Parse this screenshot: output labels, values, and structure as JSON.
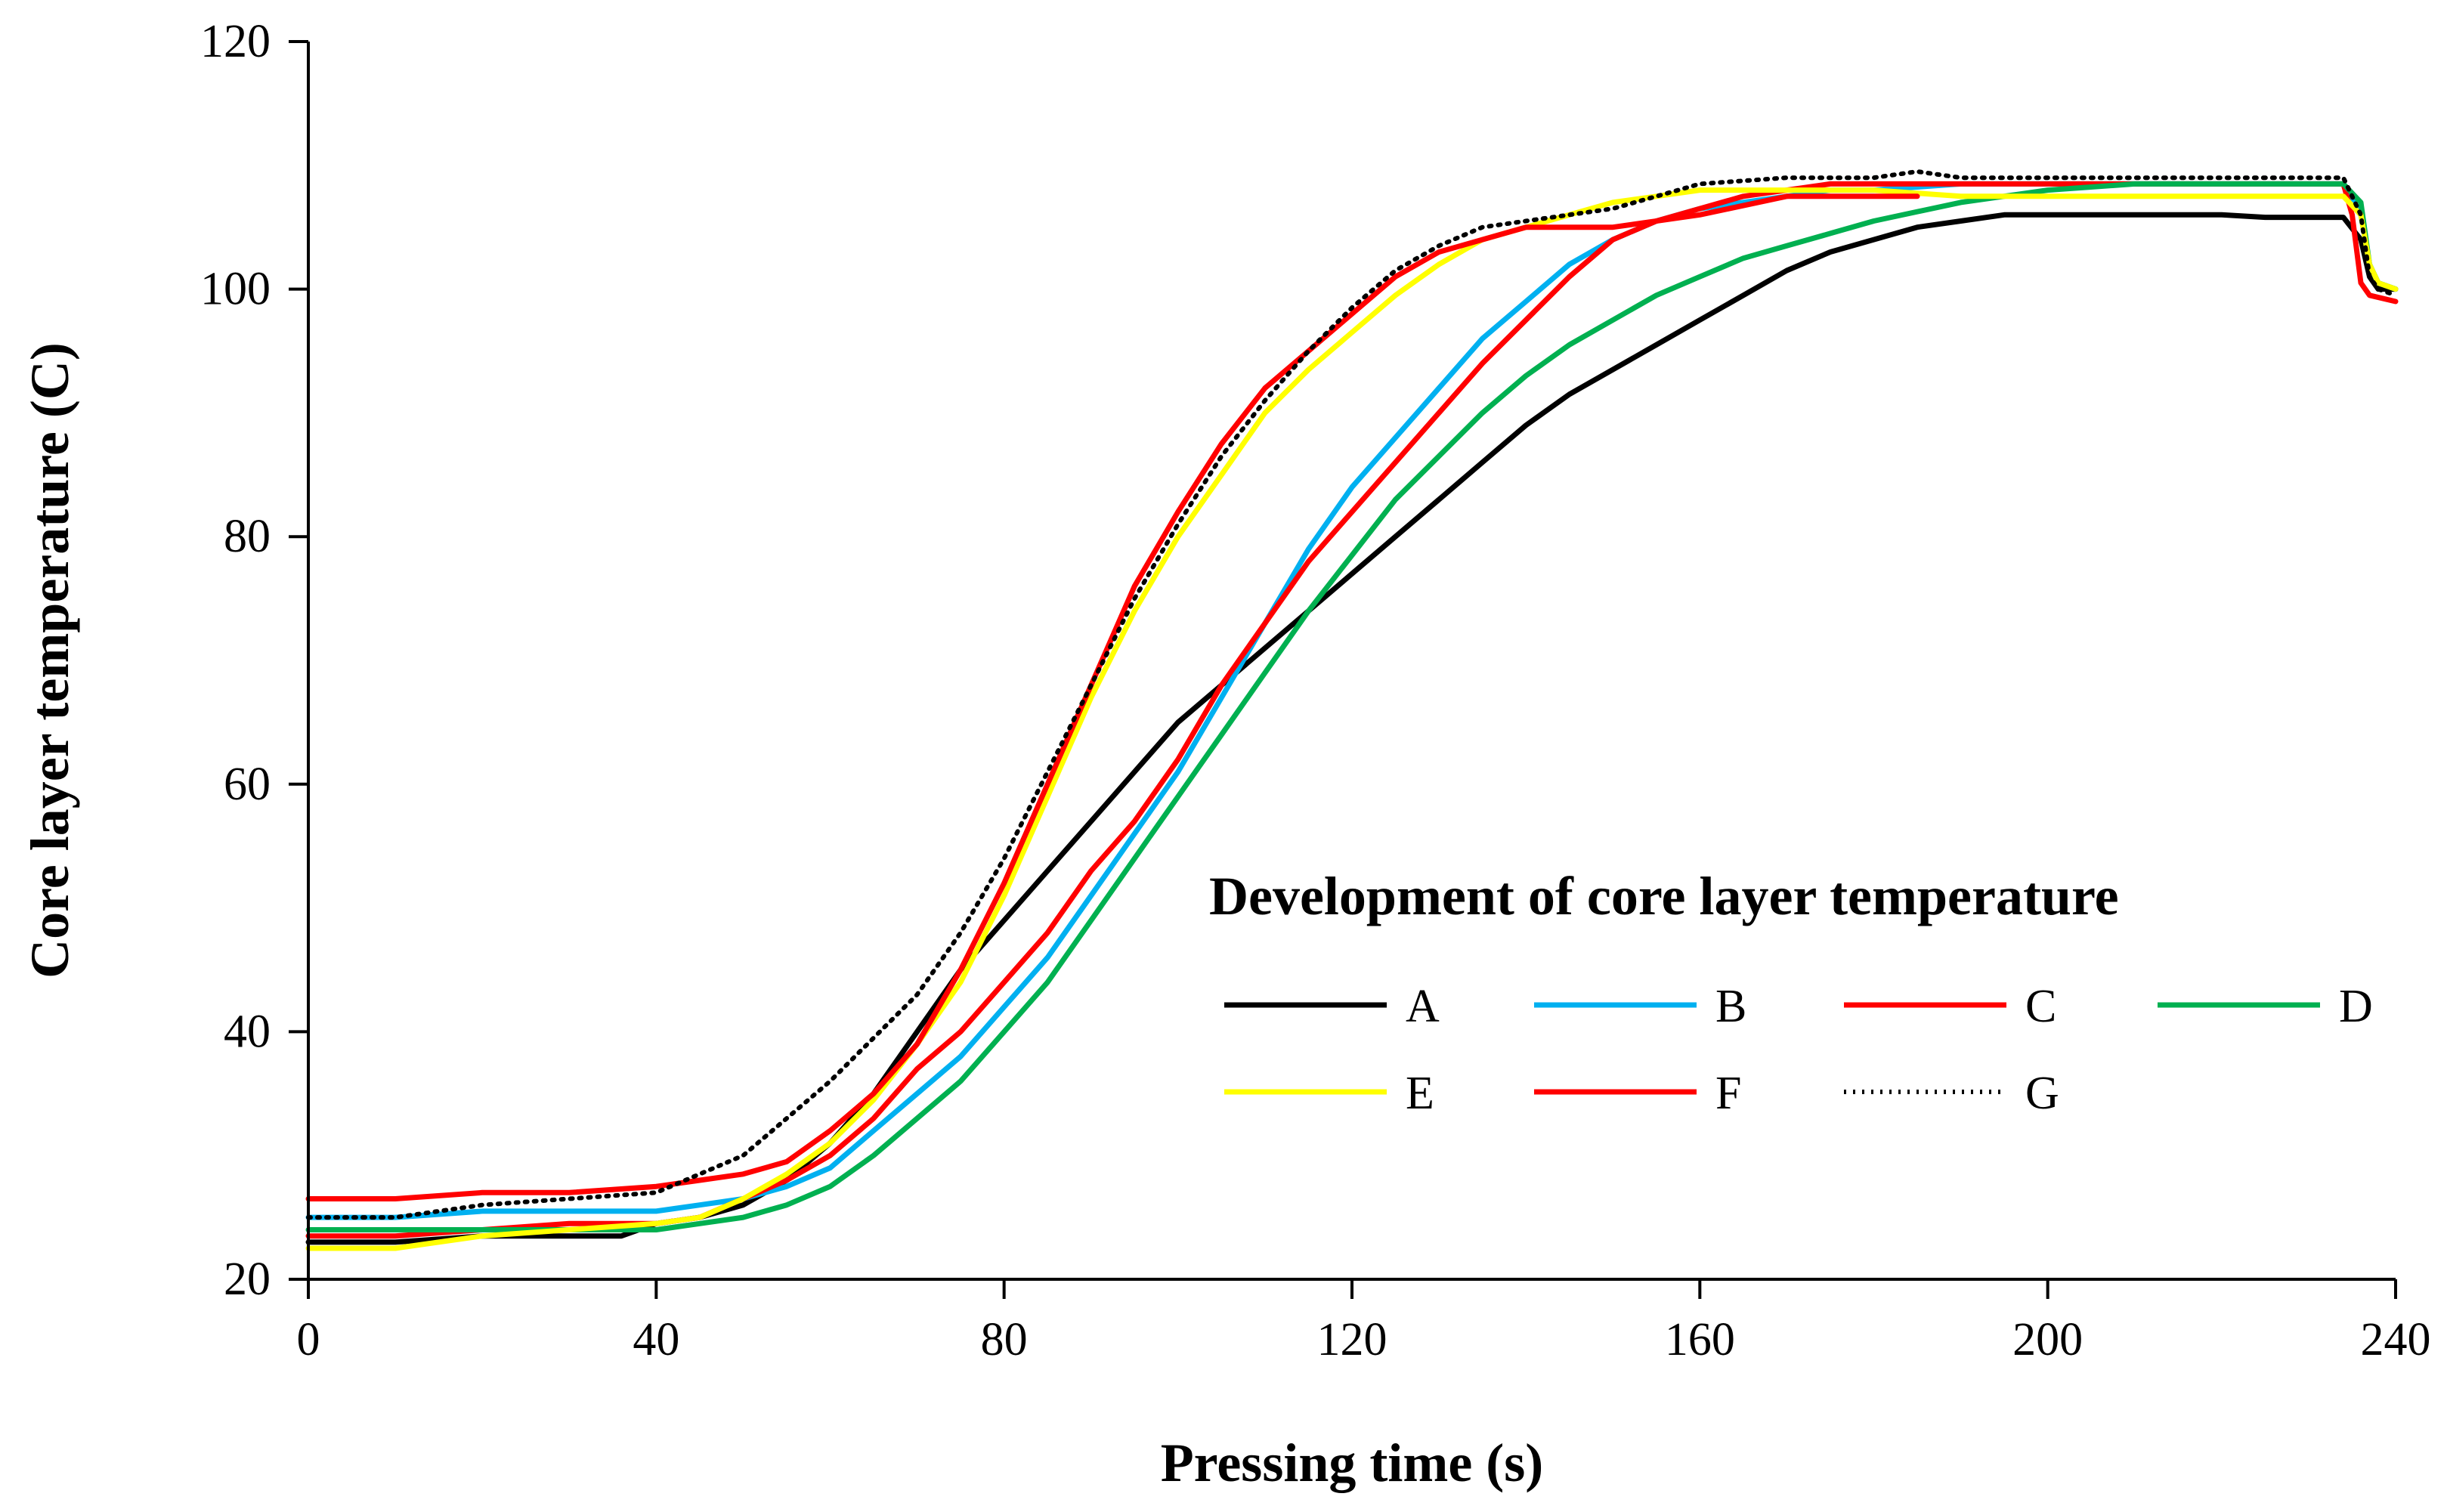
{
  "chart_data": {
    "type": "line",
    "title": "",
    "xlabel": "Pressing time (s)",
    "ylabel": "Core layer temperature (C)",
    "xlim": [
      0,
      240
    ],
    "ylim": [
      20,
      120
    ],
    "xticks": [
      0,
      40,
      80,
      120,
      160,
      200,
      240
    ],
    "yticks": [
      20,
      40,
      60,
      80,
      100,
      120
    ],
    "grid": false,
    "legend": {
      "title": "Development of core layer temperature",
      "placement": "lower-right"
    },
    "series": [
      {
        "name": "A",
        "color": "#000000",
        "dash": "solid",
        "x": [
          0,
          2,
          10,
          20,
          30,
          36,
          40,
          45,
          50,
          55,
          60,
          65,
          70,
          75,
          80,
          85,
          90,
          95,
          100,
          105,
          110,
          115,
          120,
          125,
          130,
          135,
          140,
          145,
          150,
          155,
          160,
          165,
          170,
          175,
          180,
          185,
          190,
          195,
          200,
          210,
          220,
          225,
          230,
          234,
          236,
          237,
          238,
          240
        ],
        "y": [
          23,
          23,
          23,
          23.5,
          23.5,
          23.5,
          24.5,
          25,
          26,
          28,
          31,
          35,
          40,
          45,
          49,
          53,
          57,
          61,
          65,
          68,
          71,
          74,
          77,
          80,
          83,
          86,
          89,
          91.5,
          93.5,
          95.5,
          97.5,
          99.5,
          101.5,
          103,
          104,
          105,
          105.5,
          106,
          106,
          106,
          106,
          105.8,
          105.8,
          105.8,
          104,
          101,
          100,
          100
        ]
      },
      {
        "name": "B",
        "color": "#00B0F0",
        "dash": "solid",
        "x": [
          0,
          2,
          10,
          20,
          30,
          40,
          45,
          50,
          55,
          60,
          65,
          70,
          75,
          80,
          85,
          90,
          95,
          100,
          105,
          110,
          115,
          120,
          125,
          130,
          135,
          140,
          145,
          150,
          155,
          160,
          165,
          170,
          175,
          180,
          190,
          200,
          210,
          220,
          230,
          234,
          236,
          237,
          238,
          240
        ],
        "y": [
          25,
          25,
          25,
          25.5,
          25.5,
          25.5,
          26,
          26.5,
          27.5,
          29,
          32,
          35,
          38,
          42,
          46,
          51,
          56,
          61,
          67,
          73,
          79,
          84,
          88,
          92,
          96,
          99,
          102,
          104,
          105.5,
          106.5,
          107,
          107.5,
          108,
          108,
          108.5,
          108.5,
          108.5,
          108.5,
          108.5,
          108.5,
          106,
          102,
          100.5,
          100
        ]
      },
      {
        "name": "C",
        "color": "#FF0000",
        "dash": "solid",
        "x": [
          0,
          2,
          10,
          20,
          30,
          40,
          45,
          50,
          55,
          60,
          65,
          70,
          75,
          80,
          85,
          90,
          95,
          100,
          105,
          110,
          115,
          120,
          125,
          130,
          135,
          140,
          145,
          150,
          155,
          160,
          165,
          170,
          175,
          180,
          190,
          200,
          210,
          220,
          230,
          234,
          235,
          236,
          237,
          240
        ],
        "y": [
          23.5,
          23.5,
          23.5,
          24,
          24.5,
          24.5,
          25,
          26.5,
          28,
          30,
          33,
          37,
          40,
          44,
          48,
          53,
          57,
          62,
          68,
          73,
          78,
          82,
          86,
          90,
          94,
          97.5,
          101,
          104,
          105.5,
          106.5,
          107.5,
          108,
          108.5,
          108.5,
          108.5,
          108.5,
          108.5,
          108.5,
          108.5,
          108.5,
          106,
          100.5,
          99.5,
          99
        ]
      },
      {
        "name": "D",
        "color": "#00B050",
        "dash": "solid",
        "x": [
          0,
          2,
          10,
          20,
          30,
          40,
          45,
          50,
          55,
          60,
          65,
          70,
          75,
          80,
          85,
          90,
          95,
          100,
          105,
          110,
          115,
          120,
          125,
          130,
          135,
          140,
          145,
          150,
          155,
          160,
          165,
          170,
          175,
          180,
          190,
          200,
          210,
          220,
          230,
          234,
          236,
          237,
          238,
          240
        ],
        "y": [
          24,
          24,
          24,
          24,
          24,
          24,
          24.5,
          25,
          26,
          27.5,
          30,
          33,
          36,
          40,
          44,
          49,
          54,
          59,
          64,
          69,
          74,
          78.5,
          83,
          86.5,
          90,
          93,
          95.5,
          97.5,
          99.5,
          101,
          102.5,
          103.5,
          104.5,
          105.5,
          107,
          108,
          108.5,
          108.5,
          108.5,
          108.5,
          107,
          102,
          100.5,
          100
        ]
      },
      {
        "name": "E",
        "color": "#FFFF00",
        "dash": "solid",
        "x": [
          0,
          2,
          10,
          20,
          30,
          40,
          45,
          50,
          55,
          60,
          65,
          70,
          75,
          80,
          85,
          90,
          95,
          100,
          105,
          110,
          115,
          120,
          125,
          130,
          135,
          140,
          145,
          150,
          155,
          160,
          170,
          180,
          190,
          200,
          210,
          220,
          230,
          234,
          236,
          237,
          238,
          240
        ],
        "y": [
          22.5,
          22.5,
          22.5,
          23.5,
          24,
          24.5,
          25,
          26.5,
          28.5,
          31,
          34.5,
          39,
          44,
          51,
          59,
          67,
          74,
          80,
          85,
          90,
          93.5,
          96.5,
          99.5,
          102,
          104,
          105,
          106,
          107,
          107.5,
          108,
          108,
          108,
          107.5,
          107.5,
          107.5,
          107.5,
          107.5,
          107.5,
          106,
          102,
          100.5,
          100
        ]
      },
      {
        "name": "F",
        "color": "#FF0000",
        "dash": "solid",
        "x": [
          0,
          2,
          10,
          20,
          30,
          40,
          45,
          50,
          55,
          60,
          65,
          70,
          75,
          80,
          85,
          90,
          95,
          100,
          105,
          110,
          115,
          120,
          125,
          130,
          135,
          140,
          145,
          150,
          160,
          170,
          180,
          185
        ],
        "y": [
          26.5,
          26.5,
          26.5,
          27,
          27,
          27.5,
          28,
          28.5,
          29.5,
          32,
          35,
          39,
          45,
          52,
          60,
          68,
          76,
          82,
          87.5,
          92,
          95,
          98,
          101,
          103,
          104,
          105,
          105,
          105,
          106,
          107.5,
          107.5,
          107.5
        ]
      },
      {
        "name": "G",
        "color": "#000000",
        "dash": "dotted",
        "x": [
          0,
          2,
          10,
          20,
          30,
          40,
          45,
          50,
          55,
          60,
          65,
          70,
          75,
          80,
          85,
          90,
          95,
          100,
          105,
          110,
          115,
          120,
          125,
          130,
          135,
          140,
          145,
          150,
          155,
          160,
          170,
          180,
          185,
          190,
          200,
          210,
          220,
          230,
          234,
          236,
          237,
          238,
          240
        ],
        "y": [
          25,
          25,
          25,
          26,
          26.5,
          27,
          28.5,
          30,
          33,
          36,
          39.5,
          43,
          48,
          54,
          61,
          68,
          75,
          81,
          86.5,
          91,
          95,
          98.5,
          101.5,
          103.5,
          105,
          105.5,
          106,
          106.5,
          107.5,
          108.5,
          109,
          109,
          109.5,
          109,
          109,
          109,
          109,
          109,
          109,
          106,
          101,
          100,
          99.5
        ]
      }
    ]
  }
}
